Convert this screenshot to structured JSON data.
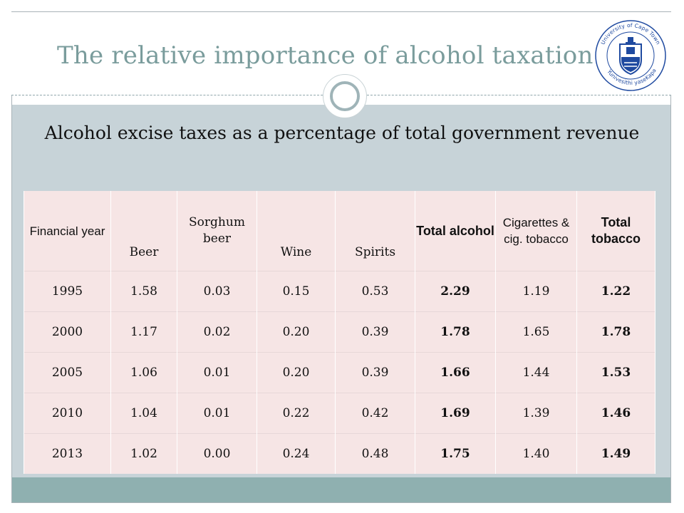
{
  "slide": {
    "title": "The relative importance of alcohol taxation",
    "subtitle": "Alcohol excise taxes as a percentage of total government revenue"
  },
  "logo": {
    "text_top": "University of Cape Town",
    "text_bottom": "iYunivesithi yaseKapa",
    "text_left": "Universiteit van Kaapstad",
    "color": "#1f4aa0"
  },
  "table": {
    "headers": [
      {
        "label": "Financial year",
        "bold": false
      },
      {
        "label": "Beer",
        "bold": false
      },
      {
        "label": "Sorghum beer",
        "bold": false
      },
      {
        "label": "Wine",
        "bold": false
      },
      {
        "label": "Spirits",
        "bold": false
      },
      {
        "label": "Total alcohol",
        "bold": true
      },
      {
        "label": "Cigarettes & cig. tobacco",
        "bold": false
      },
      {
        "label": "Total tobacco",
        "bold": true
      }
    ],
    "rows": [
      [
        "1995",
        "1.58",
        "0.03",
        "0.15",
        "0.53",
        "2.29",
        "1.19",
        "1.22"
      ],
      [
        "2000",
        "1.17",
        "0.02",
        "0.20",
        "0.39",
        "1.78",
        "1.65",
        "1.78"
      ],
      [
        "2005",
        "1.06",
        "0.01",
        "0.20",
        "0.39",
        "1.66",
        "1.44",
        "1.53"
      ],
      [
        "2010",
        "1.04",
        "0.01",
        "0.22",
        "0.42",
        "1.69",
        "1.39",
        "1.46"
      ],
      [
        "2013",
        "1.02",
        "0.00",
        "0.24",
        "0.48",
        "1.75",
        "1.40",
        "1.49"
      ]
    ]
  },
  "colors": {
    "title": "#7a9c9c",
    "panel": "#c7d3d8",
    "footer": "#8fb0b0",
    "table_fill": "#f6e5e5"
  }
}
